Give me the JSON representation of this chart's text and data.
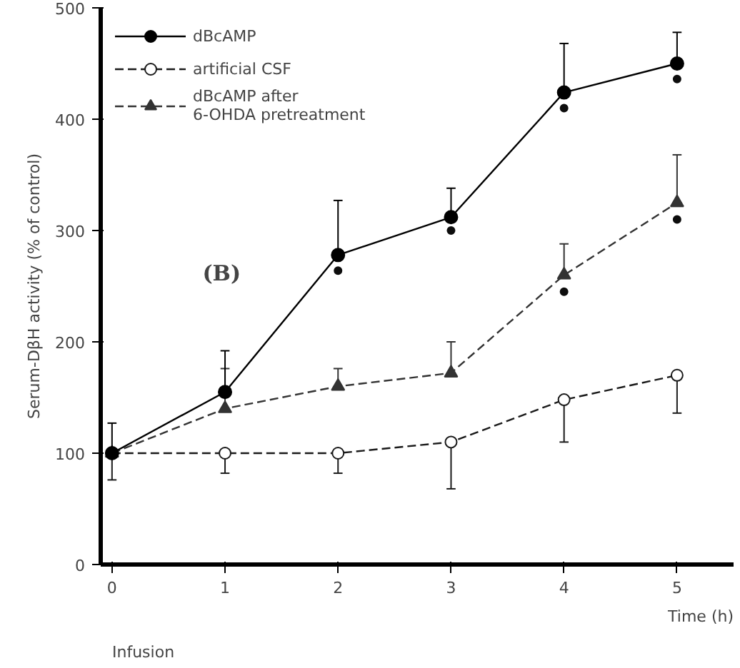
{
  "chart_data": {
    "type": "line",
    "ylabel": "Serum-DβH activity (% of control)",
    "xlabel": "Time (h)",
    "x": [
      0,
      1,
      2,
      3,
      4,
      5
    ],
    "xlim": [
      -0.1,
      5.5
    ],
    "ylim": [
      0,
      500
    ],
    "xticks": [
      0,
      1,
      2,
      3,
      4,
      5
    ],
    "yticks": [
      0,
      100,
      200,
      300,
      400,
      500
    ],
    "grid": false,
    "legend": "top left",
    "series": [
      {
        "name": "dBcAMP",
        "color": "#000000",
        "marker": "circle",
        "line_style": "solid",
        "values": [
          100,
          155,
          278,
          312,
          424,
          450
        ],
        "errors": [
          [
            100,
            127
          ],
          [
            155,
            192
          ],
          [
            278,
            327
          ],
          [
            312,
            338
          ],
          [
            424,
            468
          ],
          [
            450,
            478
          ]
        ]
      },
      {
        "name": "artificial CSF",
        "color": "#1a1a1a",
        "marker": "circle_open",
        "line_style": "dashed",
        "values": [
          100,
          100,
          100,
          110,
          148,
          170
        ],
        "errors": [
          [
            76,
            100
          ],
          [
            82,
            100
          ],
          [
            82,
            100
          ],
          [
            68,
            110
          ],
          [
            110,
            148
          ],
          [
            136,
            170
          ]
        ]
      },
      {
        "name": "dBcAMP after\n6-OHDA pretreatment",
        "color": "#333333",
        "marker": "triangle",
        "line_style": "dashed",
        "values": [
          100,
          140,
          160,
          172,
          260,
          325
        ],
        "errors": [
          null,
          [
            140,
            176
          ],
          [
            160,
            176
          ],
          [
            172,
            200
          ],
          [
            260,
            288
          ],
          [
            325,
            368
          ]
        ]
      },
      {
        "type": "scatter",
        "color": "#0d0d0d",
        "marker": "dot",
        "x": [
          2,
          3,
          4,
          5,
          4,
          5
        ],
        "values": [
          264,
          300,
          410,
          436,
          245,
          310
        ]
      }
    ],
    "annotations": [
      "(B)",
      "Infusion"
    ]
  }
}
